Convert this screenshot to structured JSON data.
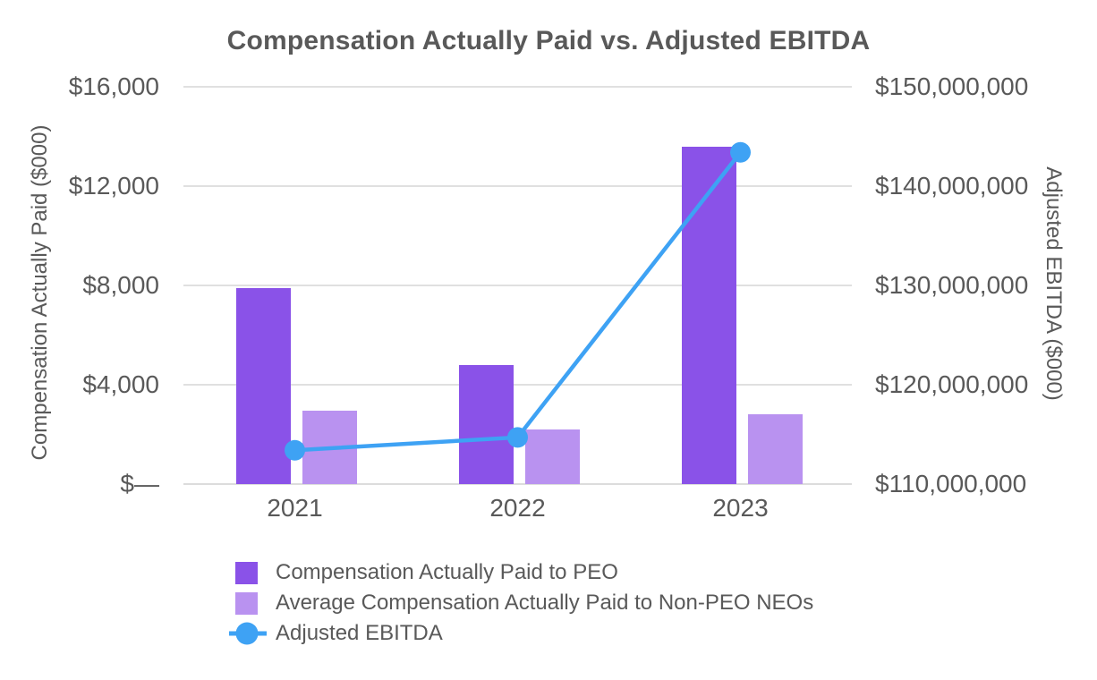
{
  "title": "Compensation Actually Paid vs. Adjusted EBITDA",
  "colors": {
    "peo_bar": "#8A52E8",
    "non_peo_bar": "#B992F0",
    "ebitda_line": "#3EA2F4",
    "text": "#595959",
    "grid": "#E0E0E0"
  },
  "chart_data": {
    "type": "bar",
    "subtype": "combo-dual-axis (grouped bars + line)",
    "title": "Compensation Actually Paid vs. Adjusted EBITDA",
    "categories": [
      "2021",
      "2022",
      "2023"
    ],
    "series": [
      {
        "name": "Compensation Actually Paid to PEO",
        "type": "bar",
        "axis": "left",
        "color": "#8A52E8",
        "values": [
          7900,
          4800,
          13600
        ]
      },
      {
        "name": "Average Compensation Actually Paid to Non-PEO NEOs",
        "type": "bar",
        "axis": "left",
        "color": "#B992F0",
        "values": [
          2950,
          2200,
          2800
        ]
      },
      {
        "name": "Adjusted EBITDA",
        "type": "line",
        "axis": "right",
        "color": "#3EA2F4",
        "values": [
          113400000,
          114700000,
          143400000
        ]
      }
    ],
    "left_axis": {
      "label": "Compensation Actually Paid ($000)",
      "range": [
        0,
        16000
      ],
      "ticks": [
        0,
        4000,
        8000,
        12000,
        16000
      ],
      "tick_labels": [
        "$—",
        "$4,000",
        "$8,000",
        "$12,000",
        "$16,000"
      ]
    },
    "right_axis": {
      "label": "Adjusted EBITDA ($000)",
      "range": [
        110000000,
        150000000
      ],
      "ticks": [
        110000000,
        120000000,
        130000000,
        140000000,
        150000000
      ],
      "tick_labels": [
        "$110,000,000",
        "$120,000,000",
        "$130,000,000",
        "$140,000,000",
        "$150,000,000"
      ]
    },
    "grid": "horizontal gridlines on",
    "legend_position": "bottom-left"
  }
}
